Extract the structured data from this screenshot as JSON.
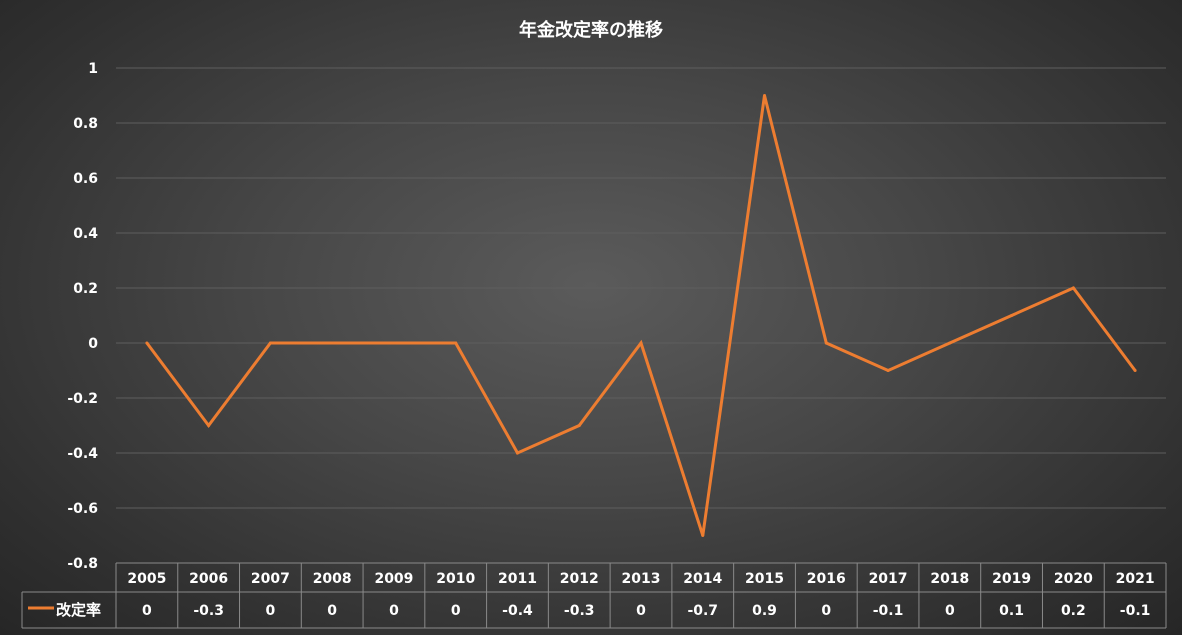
{
  "chart_data": {
    "type": "line",
    "title": "年金改定率の推移",
    "x": [
      "2005",
      "2006",
      "2007",
      "2008",
      "2009",
      "2010",
      "2011",
      "2012",
      "2013",
      "2014",
      "2015",
      "2016",
      "2017",
      "2018",
      "2019",
      "2020",
      "2021"
    ],
    "series": [
      {
        "name": "改定率",
        "values": [
          0,
          -0.3,
          0,
          0,
          0,
          0,
          -0.4,
          -0.3,
          0,
          -0.7,
          0.9,
          0,
          -0.1,
          0,
          0.1,
          0.2,
          -0.1
        ],
        "display": [
          "0",
          "-0.3",
          "0",
          "0",
          "0",
          "0",
          "-0.4",
          "-0.3",
          "0",
          "-0.7",
          "0.9",
          "0",
          "-0.1",
          "0",
          "0.1",
          "0.2",
          "-0.1"
        ]
      }
    ],
    "ylim": [
      -0.8,
      1
    ],
    "yticks": [
      "1",
      "0.8",
      "0.6",
      "0.4",
      "0.2",
      "0",
      "-0.2",
      "-0.4",
      "-0.6",
      "-0.8"
    ],
    "grid": true,
    "data_table": true,
    "colors": {
      "line": "#ED7D31",
      "background": "#3f3f3f"
    }
  }
}
